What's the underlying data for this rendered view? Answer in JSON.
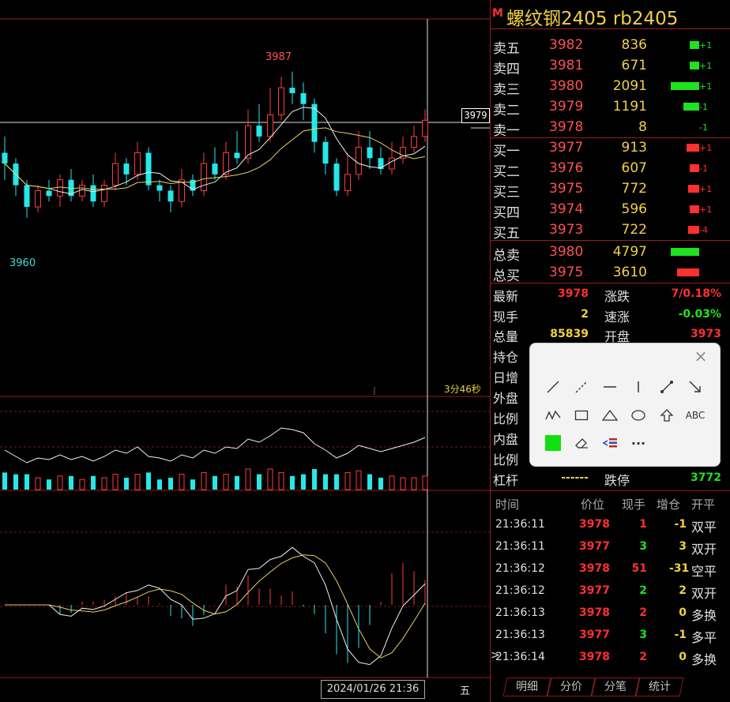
{
  "chart": {
    "high_label": "3987",
    "low_label": "3960",
    "crosshair_price": "3979",
    "countdown": "3分46秒",
    "date": "2024/01/26 21:36",
    "weekday": "五"
  },
  "header": {
    "mark": "M",
    "title": "螺纹钢2405  rb2405"
  },
  "orderbook": {
    "asks": [
      {
        "label": "卖五",
        "price": "3982",
        "volume": "836",
        "change": "+1",
        "bar_fraction": 0.3,
        "bar_color": "#20e020",
        "change_color": "#20e020"
      },
      {
        "label": "卖四",
        "price": "3981",
        "volume": "671",
        "change": "+1",
        "bar_fraction": 0.3,
        "bar_color": "#20e020",
        "change_color": "#20e020"
      },
      {
        "label": "卖三",
        "price": "3980",
        "volume": "2091",
        "change": "+1",
        "bar_fraction": 0.9,
        "bar_color": "#20e020",
        "change_color": "#20e020"
      },
      {
        "label": "卖二",
        "price": "3979",
        "volume": "1191",
        "change": "-1",
        "bar_fraction": 0.5,
        "bar_color": "#20e020",
        "change_color": "#20e020"
      },
      {
        "label": "卖一",
        "price": "3978",
        "volume": "8",
        "change": "-1",
        "bar_fraction": 0,
        "bar_color": "#20e020",
        "change_color": "#20e020"
      }
    ],
    "bids": [
      {
        "label": "买一",
        "price": "3977",
        "volume": "913",
        "change": "+1",
        "bar_fraction": 0.4,
        "bar_color": "#ff3030",
        "change_color": "#ff3030"
      },
      {
        "label": "买二",
        "price": "3976",
        "volume": "607",
        "change": "-1",
        "bar_fraction": 0.3,
        "bar_color": "#ff3030",
        "change_color": "#ff3030"
      },
      {
        "label": "买三",
        "price": "3975",
        "volume": "772",
        "change": "+1",
        "bar_fraction": 0.35,
        "bar_color": "#ff3030",
        "change_color": "#ff3030"
      },
      {
        "label": "买四",
        "price": "3974",
        "volume": "596",
        "change": "+1",
        "bar_fraction": 0.3,
        "bar_color": "#ff3030",
        "change_color": "#ff3030"
      },
      {
        "label": "买五",
        "price": "3973",
        "volume": "722",
        "change": "-4",
        "bar_fraction": 0.35,
        "bar_color": "#ff3030",
        "change_color": "#ff3030"
      }
    ],
    "total_sell": {
      "label": "总卖",
      "price": "3980",
      "volume": "4797",
      "bar_color": "#20e020"
    },
    "total_buy": {
      "label": "总买",
      "price": "3975",
      "volume": "3610",
      "bar_color": "#ff3030"
    }
  },
  "quote": {
    "latest_label": "最新",
    "latest": "3978",
    "change_label": "涨跌",
    "change": "7/0.18%",
    "lastvol_label": "现手",
    "lastvol": "2",
    "speed_label": "速涨",
    "speed": "-0.03%",
    "totalvol_label": "总量",
    "totalvol": "85839",
    "open_label": "开盘",
    "open": "3973",
    "oi_label": "持仓",
    "dayinc_label": "日增",
    "outer_label": "外盘",
    "ratio1_label": "比例",
    "inner_label": "内盘",
    "ratio2_label": "比例",
    "leverage_label": "杠杆",
    "leverage": "------",
    "limitdown_label": "跌停",
    "limitdown": "3772"
  },
  "ticks": {
    "headers": [
      "时间",
      "价位",
      "现手",
      "增仓",
      "开平"
    ],
    "rows": [
      {
        "time": "21:36:11",
        "price": "3978",
        "vol": "1",
        "oi": "-1",
        "type": "双平",
        "price_color": "#ff3030",
        "vol_color": "#ff3030",
        "oi_color": "#f2d040"
      },
      {
        "time": "21:36:11",
        "price": "3977",
        "vol": "3",
        "oi": "3",
        "type": "双开",
        "price_color": "#ff3030",
        "vol_color": "#20e020",
        "oi_color": "#f2d040"
      },
      {
        "time": "21:36:12",
        "price": "3978",
        "vol": "51",
        "oi": "-31",
        "type": "空平",
        "price_color": "#ff3030",
        "vol_color": "#ff3030",
        "oi_color": "#f2d040"
      },
      {
        "time": "21:36:12",
        "price": "3977",
        "vol": "2",
        "oi": "2",
        "type": "双开",
        "price_color": "#ff3030",
        "vol_color": "#20e020",
        "oi_color": "#f2d040"
      },
      {
        "time": "21:36:13",
        "price": "3978",
        "vol": "2",
        "oi": "0",
        "type": "多换",
        "price_color": "#ff3030",
        "vol_color": "#ff3030",
        "oi_color": "#f2d040"
      },
      {
        "time": "21:36:13",
        "price": "3977",
        "vol": "3",
        "oi": "-1",
        "type": "多平",
        "price_color": "#ff3030",
        "vol_color": "#20e020",
        "oi_color": "#f2d040"
      },
      {
        "time": "21:36:14",
        "price": "3978",
        "vol": "2",
        "oi": "0",
        "type": "多换",
        "price_color": "#ff3030",
        "vol_color": "#ff3030",
        "oi_color": "#f2d040"
      }
    ],
    "current_marker": ">"
  },
  "tabs": [
    "明细",
    "分价",
    "分笔",
    "统计"
  ],
  "toolbar": {
    "close": "×",
    "text_tool": "ABC",
    "more": "···",
    "fill_color": "#10e010",
    "tools": [
      "line-tool-icon",
      "dashed-line-tool-icon",
      "horizontal-line-tool-icon",
      "vertical-line-tool-icon",
      "segment-tool-icon",
      "arrow-tool-icon",
      "polyline-tool-icon",
      "rectangle-tool-icon",
      "triangle-tool-icon",
      "ellipse-tool-icon",
      "up-arrow-tool-icon",
      "text-tool-icon",
      "color-swatch",
      "eraser-icon",
      "delete-all-icon",
      "more-icon"
    ]
  },
  "chart_data": {
    "type": "candlestick",
    "ylim": [
      3955,
      3990
    ],
    "candles": [
      [
        3972,
        3970,
        3975,
        3967
      ],
      [
        3970,
        3966,
        3971,
        3964
      ],
      [
        3966,
        3962,
        3967,
        3960
      ],
      [
        3962,
        3965,
        3966,
        3961
      ],
      [
        3965,
        3964,
        3967,
        3963
      ],
      [
        3964,
        3967,
        3968,
        3962
      ],
      [
        3967,
        3964,
        3969,
        3963
      ],
      [
        3964,
        3966,
        3967,
        3963
      ],
      [
        3966,
        3963,
        3968,
        3962
      ],
      [
        3963,
        3966,
        3967,
        3962
      ],
      [
        3966,
        3970,
        3972,
        3965
      ],
      [
        3970,
        3968,
        3971,
        3966
      ],
      [
        3968,
        3972,
        3974,
        3967
      ],
      [
        3972,
        3966,
        3973,
        3965
      ],
      [
        3966,
        3965,
        3967,
        3963
      ],
      [
        3965,
        3963,
        3966,
        3961
      ],
      [
        3963,
        3967,
        3969,
        3962
      ],
      [
        3967,
        3965,
        3968,
        3964
      ],
      [
        3965,
        3970,
        3972,
        3964
      ],
      [
        3970,
        3968,
        3973,
        3967
      ],
      [
        3968,
        3972,
        3974,
        3967
      ],
      [
        3972,
        3971,
        3976,
        3970
      ],
      [
        3971,
        3977,
        3980,
        3970
      ],
      [
        3977,
        3975,
        3981,
        3974
      ],
      [
        3975,
        3979,
        3984,
        3974
      ],
      [
        3979,
        3984,
        3986,
        3978
      ],
      [
        3984,
        3983,
        3987,
        3981
      ],
      [
        3983,
        3981,
        3985,
        3978
      ],
      [
        3981,
        3974,
        3982,
        3972
      ],
      [
        3974,
        3970,
        3975,
        3968
      ],
      [
        3970,
        3965,
        3971,
        3964
      ],
      [
        3965,
        3968,
        3972,
        3964
      ],
      [
        3968,
        3973,
        3976,
        3967
      ],
      [
        3973,
        3971,
        3976,
        3969
      ],
      [
        3971,
        3969,
        3973,
        3968
      ],
      [
        3969,
        3971,
        3974,
        3968
      ],
      [
        3971,
        3973,
        3975,
        3970
      ],
      [
        3973,
        3975,
        3977,
        3972
      ],
      [
        3975,
        3978,
        3980,
        3974
      ]
    ]
  }
}
